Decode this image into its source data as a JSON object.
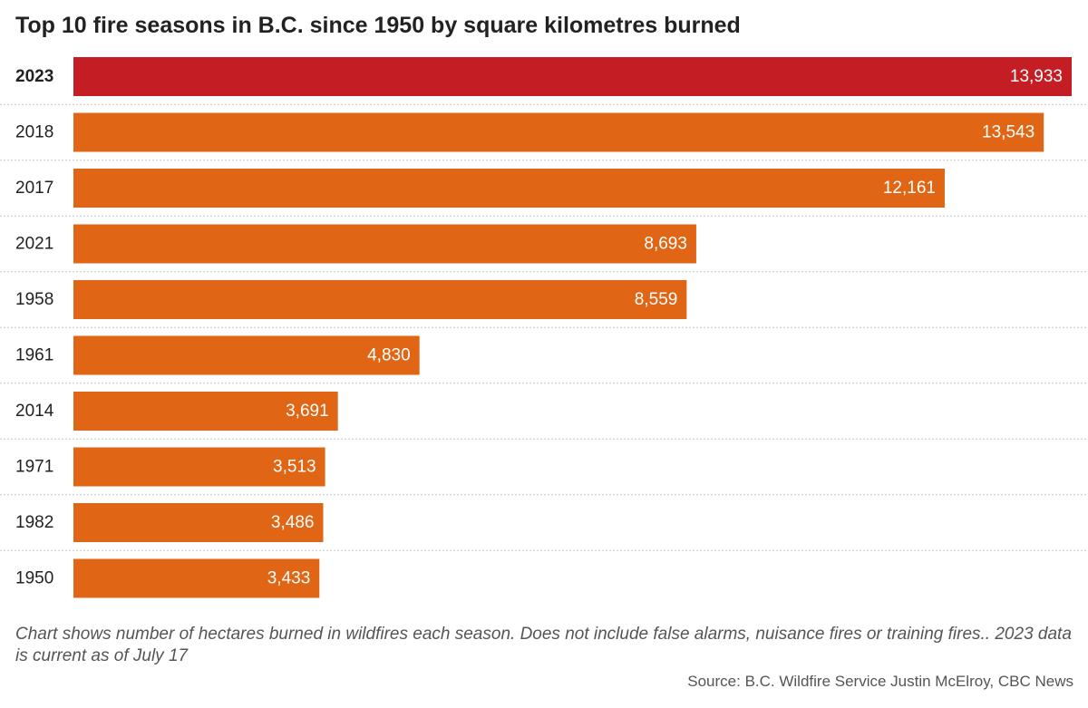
{
  "chart_data": {
    "type": "bar",
    "orientation": "horizontal",
    "title": "Top 10 fire seasons in B.C. since 1950 by square kilometres burned",
    "categories": [
      "2023",
      "2018",
      "2017",
      "2021",
      "1958",
      "1961",
      "2014",
      "1971",
      "1982",
      "1950"
    ],
    "values": [
      13933,
      13543,
      12161,
      8693,
      8559,
      4830,
      3691,
      3513,
      3486,
      3433
    ],
    "value_labels": [
      "13,933",
      "13,543",
      "12,161",
      "8,693",
      "8,559",
      "4,830",
      "3,691",
      "3,513",
      "3,486",
      "3,433"
    ],
    "highlight": "2023",
    "xlim": [
      0,
      13933
    ],
    "grid": false,
    "legend": "none",
    "note": "Chart shows number of hectares burned in wildfires each season. Does not include false alarms, nuisance fires or training fires.. 2023 data is current as of July 17",
    "source": "Source: B.C. Wildfire Service Justin McElroy, CBC News"
  },
  "colors": {
    "bar": "#e06616",
    "highlight": "#c41e24",
    "bar_text": "#ffffff"
  }
}
